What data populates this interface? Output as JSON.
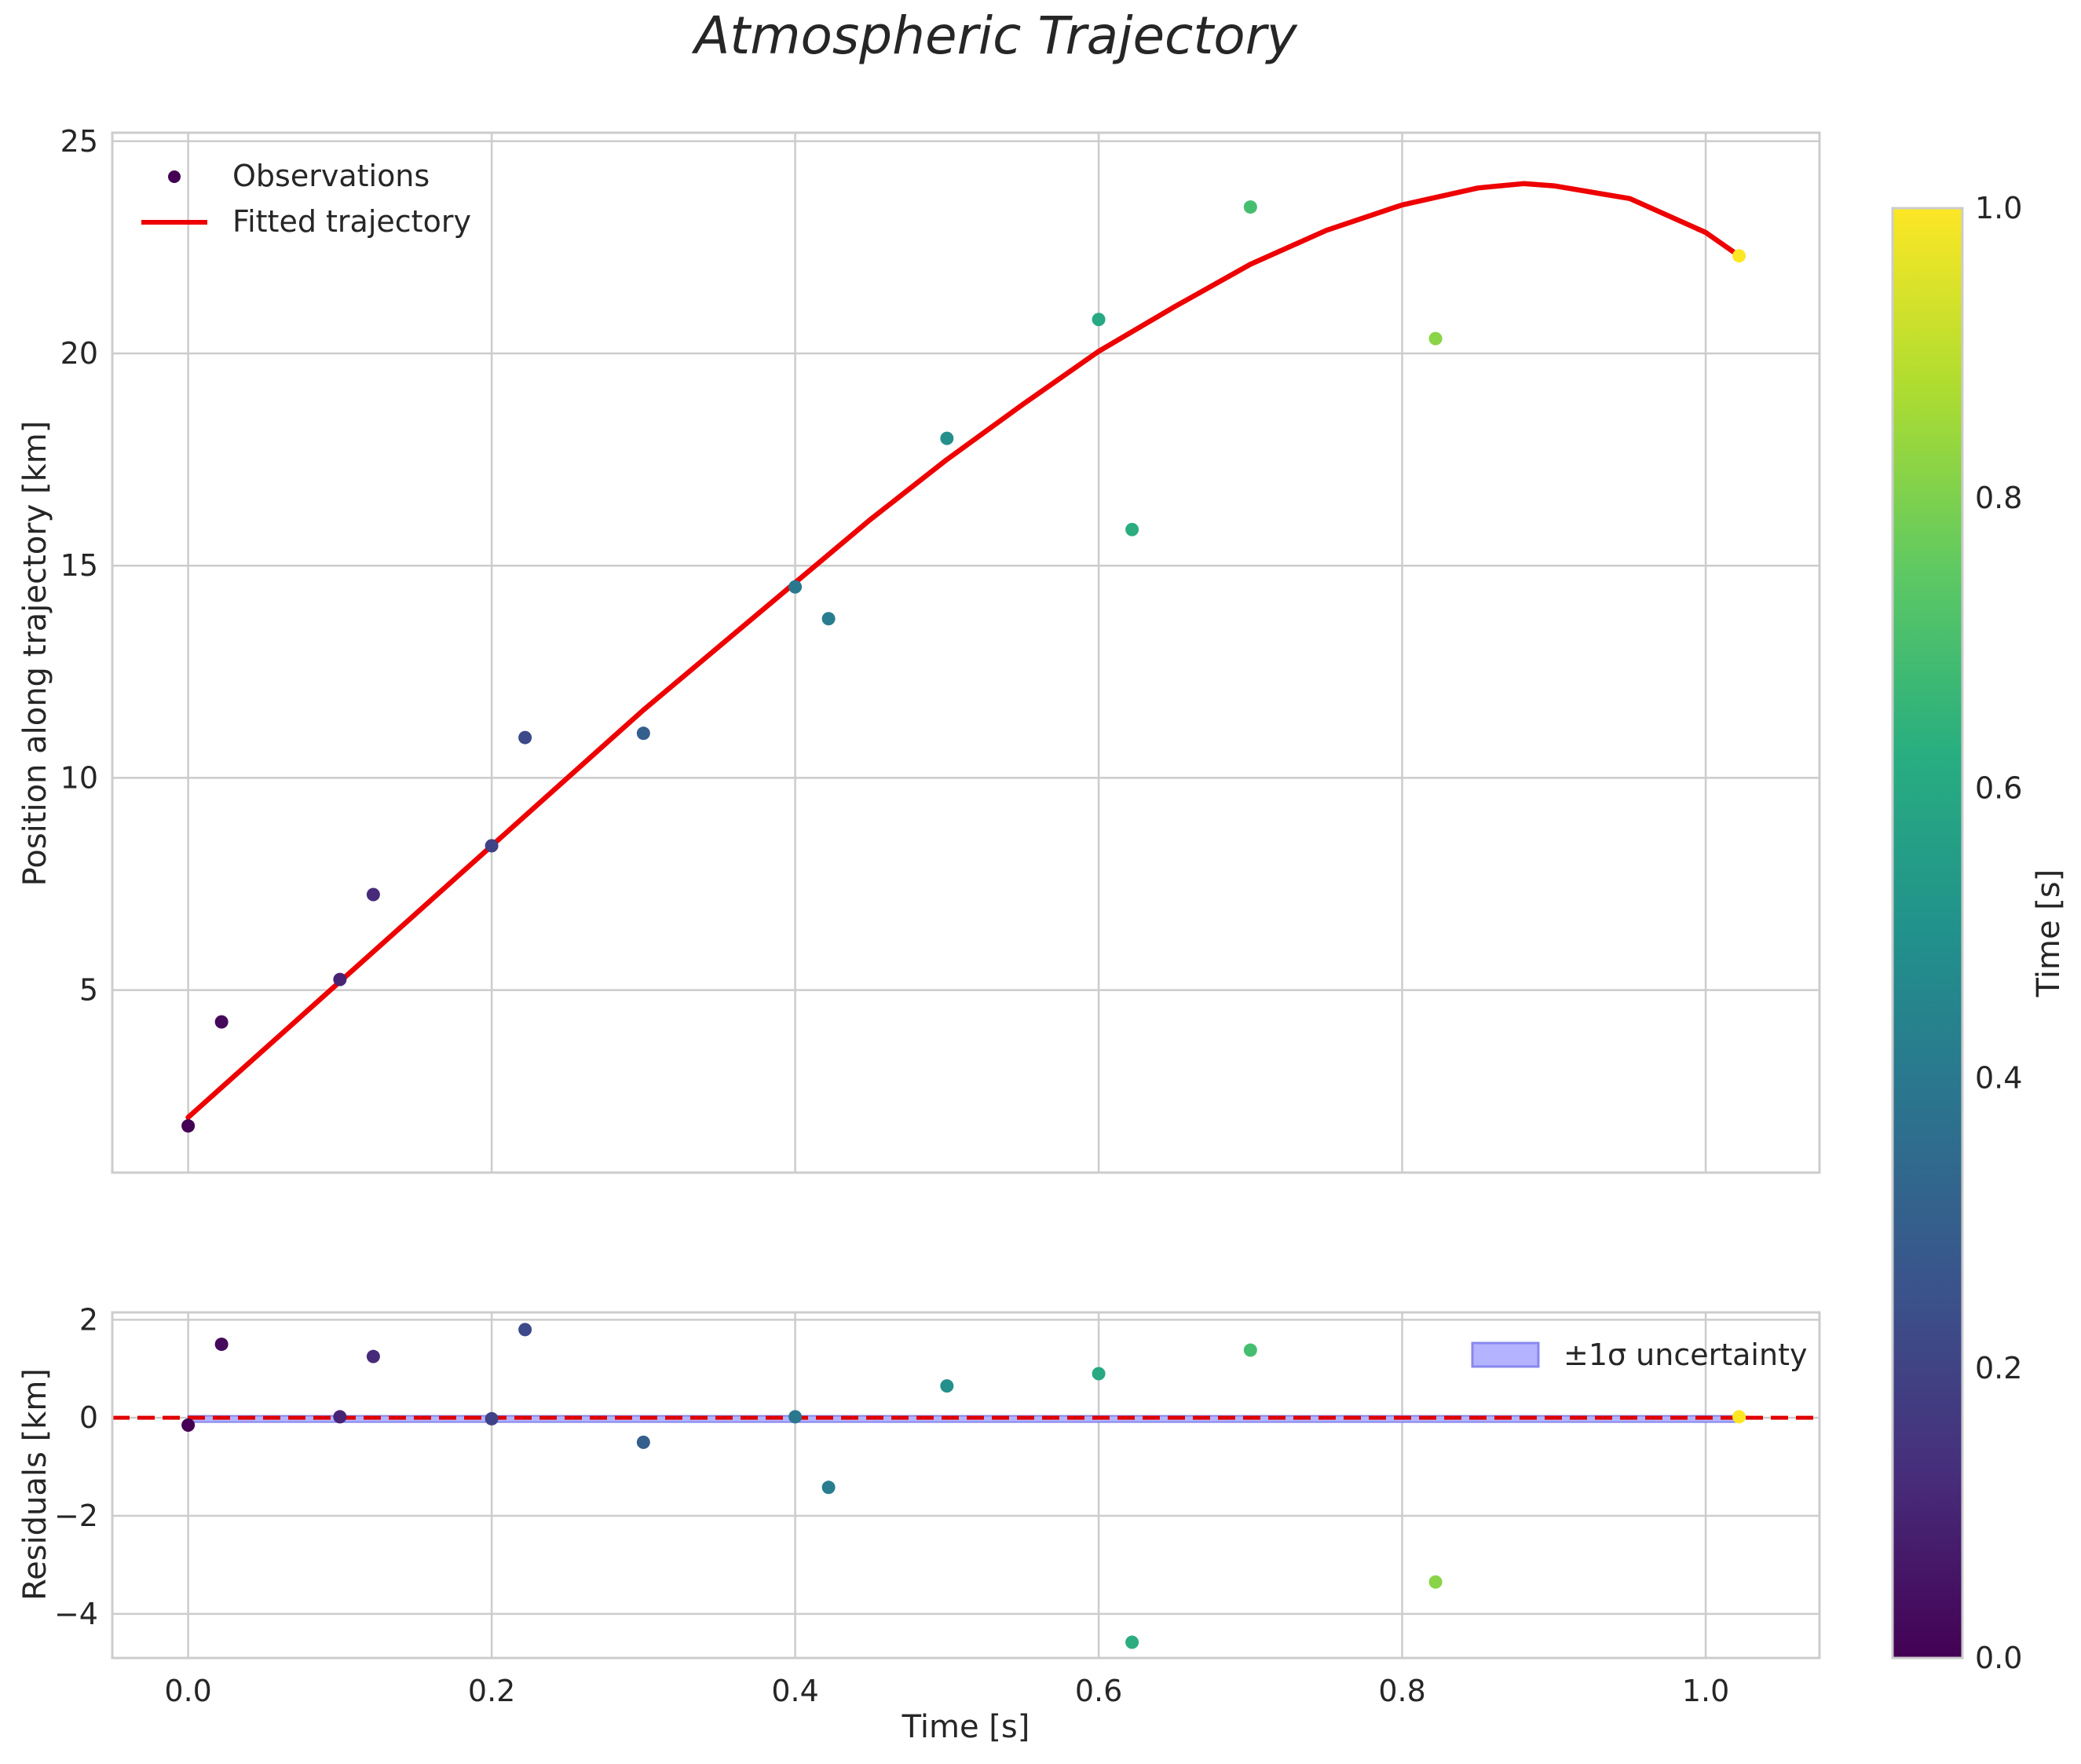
{
  "chart_data": {
    "type": "scatter",
    "title": "Atmospheric Trajectory",
    "colorbar": {
      "label": "Time [s]",
      "range": [
        0.0,
        1.0
      ],
      "ticks": [
        0.0,
        0.2,
        0.4,
        0.6,
        0.8,
        1.0
      ],
      "tick_labels": [
        "0.0",
        "0.2",
        "0.4",
        "0.6",
        "0.8",
        "1.0"
      ],
      "colormap": "viridis"
    },
    "top_panel": {
      "ylabel": "Position along trajectory [km]",
      "xlim": [
        -0.05,
        1.075
      ],
      "ylim": [
        0.7,
        25.2
      ],
      "yticks": [
        5,
        10,
        15,
        20,
        25
      ],
      "ytick_labels": [
        "5",
        "10",
        "15",
        "20",
        "25"
      ],
      "grid": true,
      "legend_position": "upper-left",
      "legend": [
        "Observations",
        "Fitted trajectory"
      ],
      "observations": [
        {
          "x": 0.0,
          "y": 1.8,
          "t": 0.0
        },
        {
          "x": 0.022,
          "y": 4.25,
          "t": 0.022
        },
        {
          "x": 0.1,
          "y": 5.25,
          "t": 0.1
        },
        {
          "x": 0.122,
          "y": 7.25,
          "t": 0.122
        },
        {
          "x": 0.2,
          "y": 8.4,
          "t": 0.2
        },
        {
          "x": 0.222,
          "y": 10.95,
          "t": 0.222
        },
        {
          "x": 0.3,
          "y": 11.05,
          "t": 0.3
        },
        {
          "x": 0.4,
          "y": 14.5,
          "t": 0.4
        },
        {
          "x": 0.422,
          "y": 13.75,
          "t": 0.422
        },
        {
          "x": 0.5,
          "y": 18.0,
          "t": 0.5
        },
        {
          "x": 0.6,
          "y": 20.8,
          "t": 0.6
        },
        {
          "x": 0.622,
          "y": 15.85,
          "t": 0.622
        },
        {
          "x": 0.7,
          "y": 23.45,
          "t": 0.7
        },
        {
          "x": 0.822,
          "y": 20.35,
          "t": 0.822
        },
        {
          "x": 1.022,
          "y": 22.3,
          "t": 1.0
        }
      ],
      "fitted_trajectory": {
        "x": [
          0.0,
          0.05,
          0.1,
          0.15,
          0.2,
          0.25,
          0.3,
          0.35,
          0.4,
          0.45,
          0.5,
          0.55,
          0.6,
          0.65,
          0.7,
          0.75,
          0.8,
          0.85,
          0.88,
          0.9,
          0.95,
          1.0,
          1.022
        ],
        "y": [
          2.0,
          3.6,
          5.2,
          6.8,
          8.4,
          10.0,
          11.6,
          13.1,
          14.6,
          16.1,
          17.5,
          18.8,
          20.05,
          21.1,
          22.1,
          22.9,
          23.5,
          23.9,
          24.0,
          23.95,
          23.65,
          22.85,
          22.3
        ]
      }
    },
    "bottom_panel": {
      "xlabel": "Time [s]",
      "ylabel": "Residuals [km]",
      "xlim": [
        -0.05,
        1.075
      ],
      "ylim": [
        -4.9,
        2.15
      ],
      "xticks": [
        0.0,
        0.2,
        0.4,
        0.6,
        0.8,
        1.0
      ],
      "xtick_labels": [
        "0.0",
        "0.2",
        "0.4",
        "0.6",
        "0.8",
        "1.0"
      ],
      "yticks": [
        -4,
        -2,
        0,
        2
      ],
      "ytick_labels": [
        "−4",
        "−2",
        "0",
        "2"
      ],
      "grid": true,
      "legend_position": "upper-right",
      "legend": [
        "±1σ uncertainty"
      ],
      "zero_line": {
        "y": 0,
        "style": "dashed",
        "color": "#e00000"
      },
      "uncertainty_band": {
        "x_range": [
          0.0,
          1.022
        ],
        "lower": -0.04,
        "upper": 0.04,
        "color": "#8080ff"
      },
      "residuals": [
        {
          "x": 0.0,
          "y": -0.15,
          "t": 0.0
        },
        {
          "x": 0.022,
          "y": 1.5,
          "t": 0.022
        },
        {
          "x": 0.1,
          "y": 0.02,
          "t": 0.1
        },
        {
          "x": 0.122,
          "y": 1.25,
          "t": 0.122
        },
        {
          "x": 0.2,
          "y": -0.02,
          "t": 0.2
        },
        {
          "x": 0.222,
          "y": 1.8,
          "t": 0.222
        },
        {
          "x": 0.3,
          "y": -0.5,
          "t": 0.3
        },
        {
          "x": 0.4,
          "y": 0.02,
          "t": 0.4
        },
        {
          "x": 0.422,
          "y": -1.42,
          "t": 0.422
        },
        {
          "x": 0.5,
          "y": 0.65,
          "t": 0.5
        },
        {
          "x": 0.6,
          "y": 0.9,
          "t": 0.6
        },
        {
          "x": 0.622,
          "y": -4.58,
          "t": 0.622
        },
        {
          "x": 0.7,
          "y": 1.38,
          "t": 0.7
        },
        {
          "x": 0.822,
          "y": -3.35,
          "t": 0.822
        },
        {
          "x": 1.022,
          "y": 0.02,
          "t": 1.0
        }
      ]
    },
    "colors": {
      "fit_line": "#ee0000",
      "grid": "#cccccc",
      "spine": "#cccccc",
      "band_fill": "#b3b3ff",
      "band_edge": "#8888ee"
    }
  }
}
